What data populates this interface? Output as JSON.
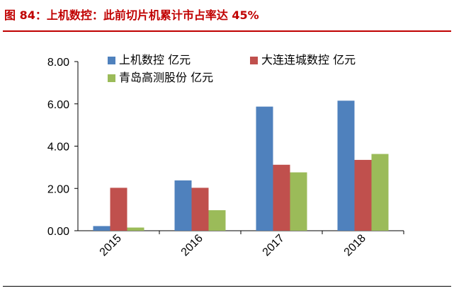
{
  "figure": {
    "title": "图 84：上机数控：此前切片机累计市占率达 45%"
  },
  "colors": {
    "title": "#c00000",
    "series": [
      "#4f81bd",
      "#c0504d",
      "#9bbb59"
    ]
  },
  "chart_data": {
    "type": "bar",
    "categories": [
      "2015",
      "2016",
      "2017",
      "2018"
    ],
    "series": [
      {
        "name": "上机数控 亿元",
        "values": [
          0.22,
          2.38,
          5.87,
          6.15
        ]
      },
      {
        "name": "大连连城数控  亿元",
        "values": [
          2.03,
          2.03,
          3.12,
          3.35
        ]
      },
      {
        "name": "青岛高测股份 亿元",
        "values": [
          0.15,
          0.97,
          2.76,
          3.63
        ]
      }
    ],
    "yticks": [
      "0.00",
      "2.00",
      "4.00",
      "6.00",
      "8.00"
    ],
    "ylim": [
      0,
      8
    ],
    "xlabel": "",
    "ylabel": "",
    "grid": false,
    "legend": "top"
  }
}
